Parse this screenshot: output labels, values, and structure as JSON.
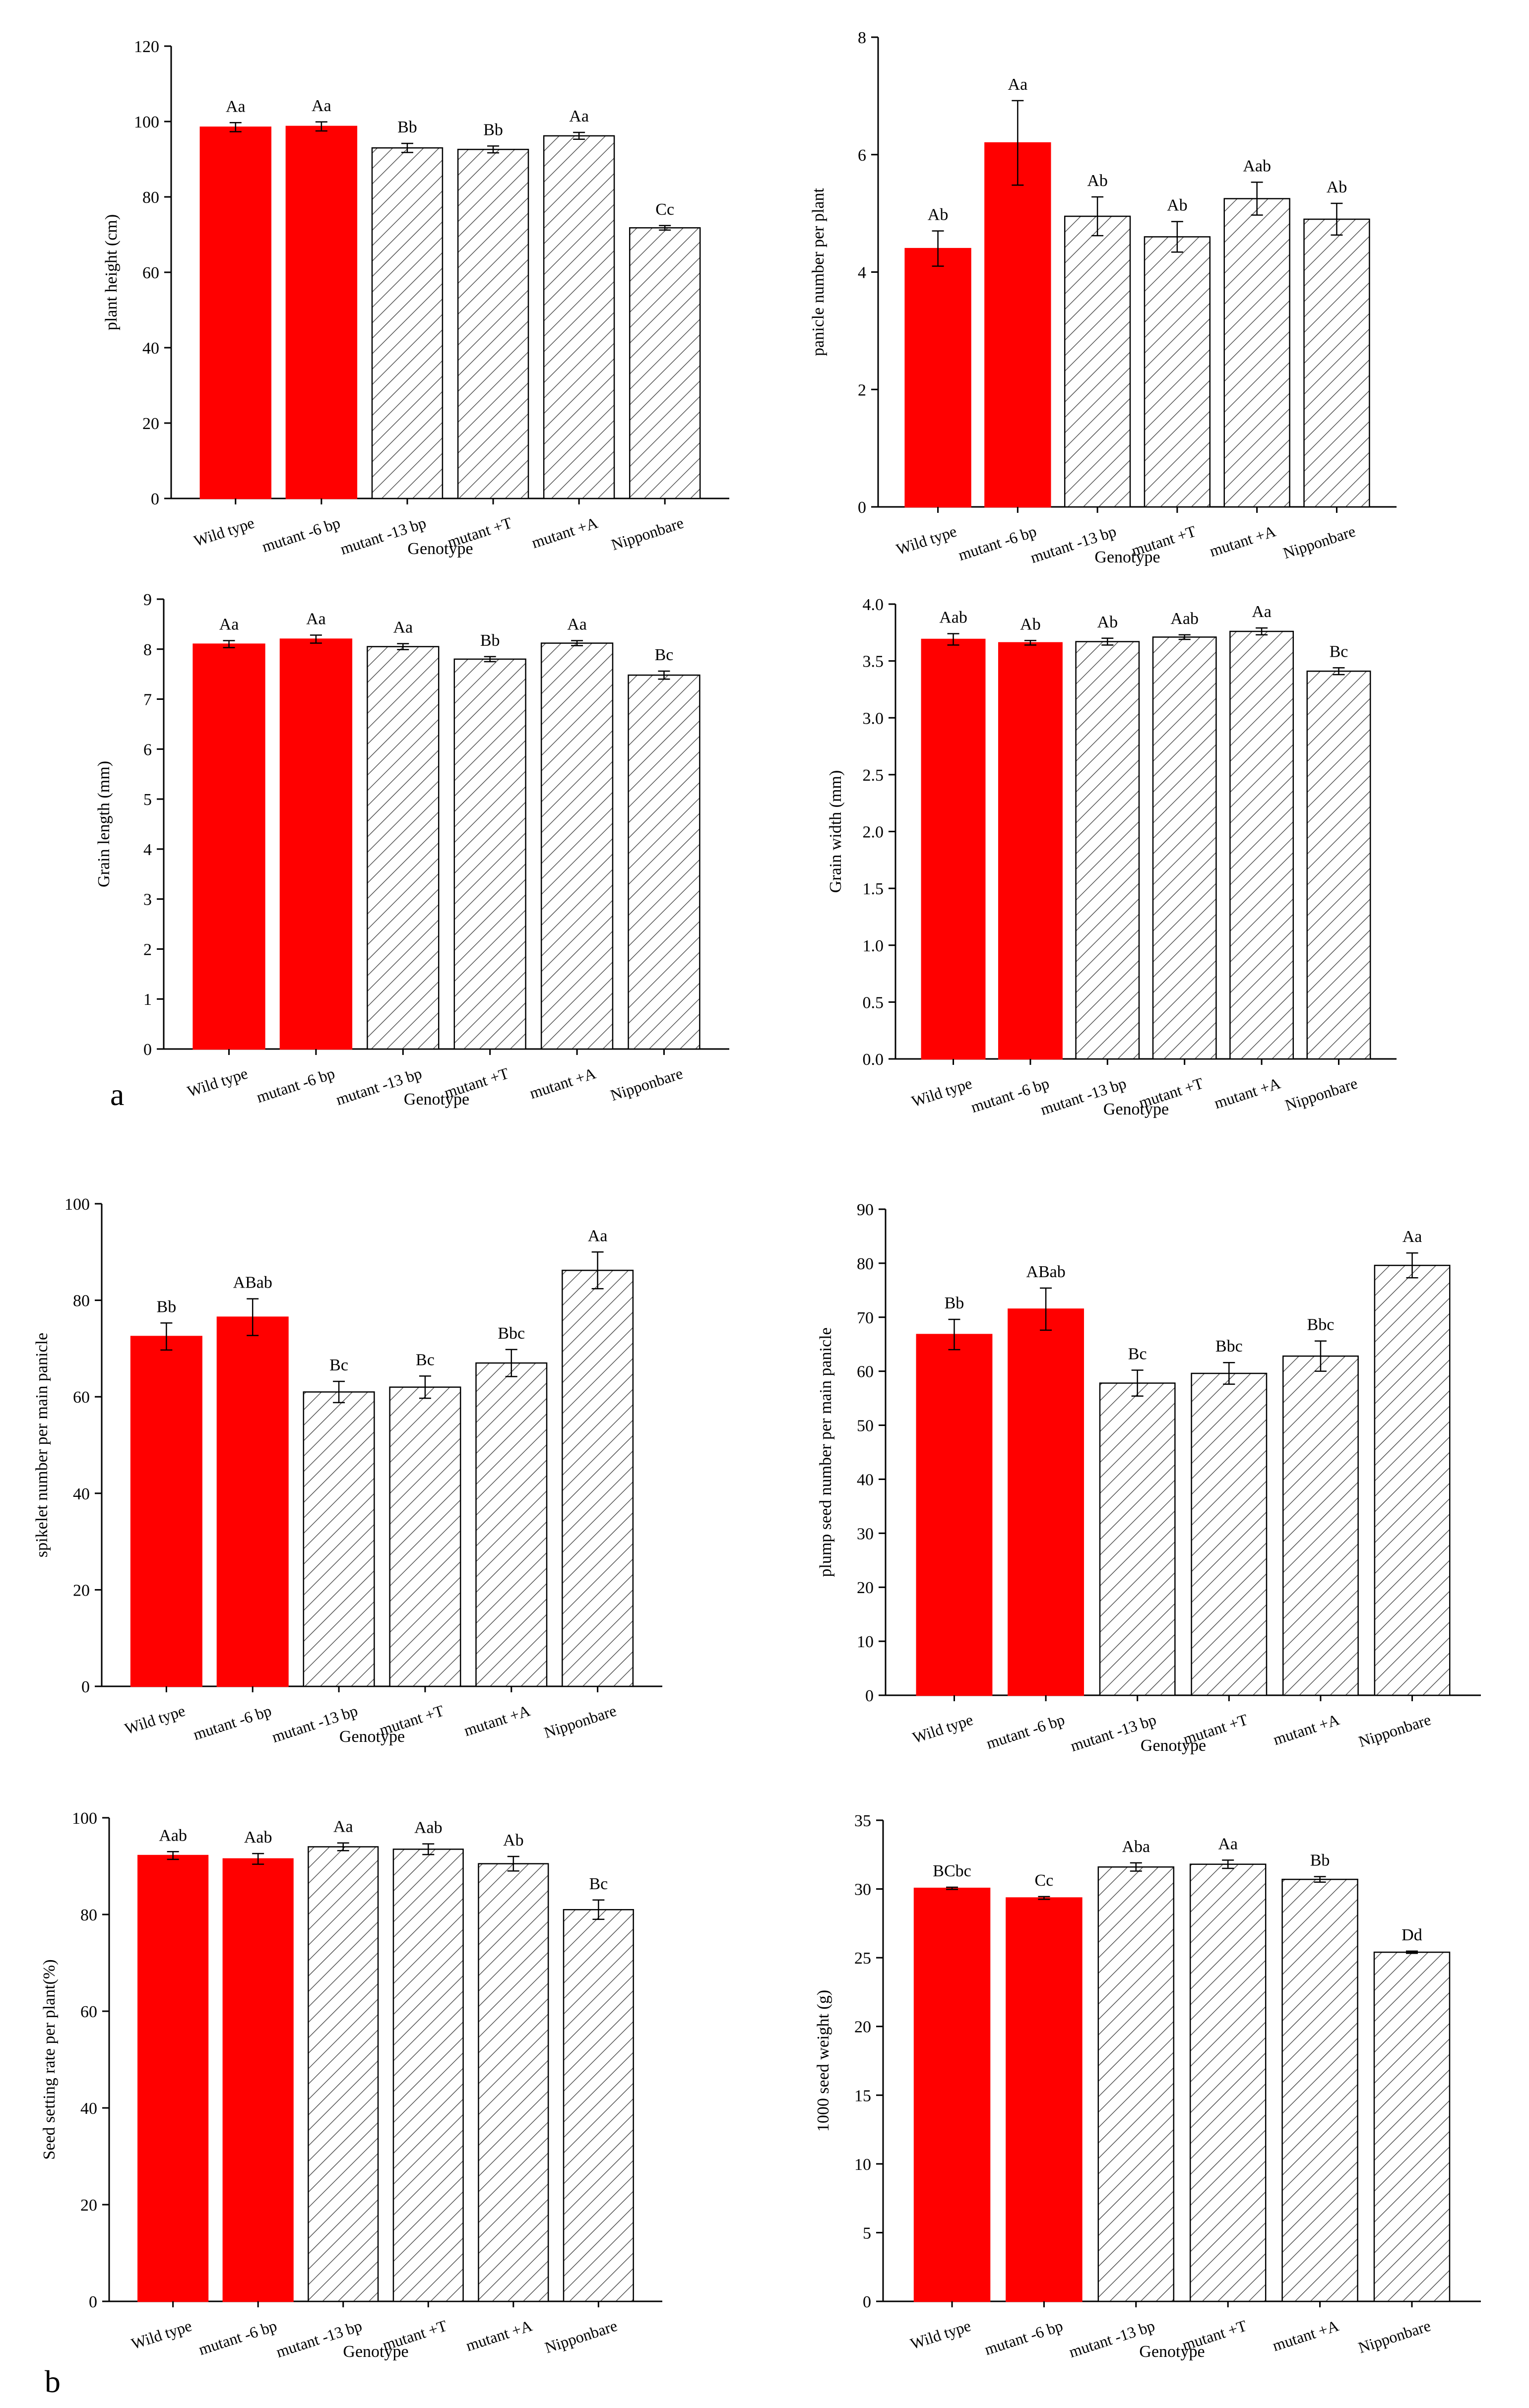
{
  "figure": {
    "panel_labels": {
      "a": "a",
      "b": "b"
    },
    "colors": {
      "highlight_fill": "#ff0000",
      "hatch_fill": "#ffffff",
      "hatch_line": "#555555",
      "axis": "#000000"
    },
    "bar_styles": [
      "solid",
      "solid",
      "hatched",
      "hatched",
      "hatched",
      "hatched"
    ]
  },
  "chart_data": [
    {
      "type": "bar",
      "title": "",
      "xlabel": "Genotype",
      "ylabel": "plant height (cm)",
      "categories": [
        "Wild type",
        "mutant -6 bp",
        "mutant -13 bp",
        "mutant +T",
        "mutant +A",
        "Nipponbare"
      ],
      "values": [
        98.5,
        98.7,
        93.0,
        92.6,
        96.2,
        71.8
      ],
      "errors": [
        1.2,
        1.2,
        1.2,
        0.9,
        0.9,
        0.6
      ],
      "labels": [
        "Aa",
        "Aa",
        "Bb",
        "Bb",
        "Aa",
        "Cc"
      ],
      "ylim": [
        0,
        120
      ],
      "yticks": [
        "0",
        "20",
        "40",
        "60",
        "80",
        "100",
        "120"
      ]
    },
    {
      "type": "bar",
      "title": "",
      "xlabel": "Genotype",
      "ylabel": "panicle number per plant",
      "categories": [
        "Wild type",
        "mutant -6 bp",
        "mutant -13 bp",
        "mutant +T",
        "mutant +A",
        "Nipponbare"
      ],
      "values": [
        4.4,
        6.2,
        4.95,
        4.6,
        5.25,
        4.9
      ],
      "errors": [
        0.3,
        0.72,
        0.33,
        0.26,
        0.28,
        0.27
      ],
      "labels": [
        "Ab",
        "Aa",
        "Ab",
        "Ab",
        "Aab",
        "Ab"
      ],
      "ylim": [
        0,
        8
      ],
      "yticks": [
        "0",
        "2",
        "4",
        "6",
        "8"
      ]
    },
    {
      "type": "bar",
      "title": "",
      "xlabel": "Genotype",
      "ylabel": "Grain length (mm)",
      "categories": [
        "Wild type",
        "mutant -6 bp",
        "mutant -13 bp",
        "mutant +T",
        "mutant +A",
        "Nipponbare"
      ],
      "values": [
        8.1,
        8.2,
        8.05,
        7.8,
        8.12,
        7.48
      ],
      "errors": [
        0.07,
        0.08,
        0.06,
        0.05,
        0.05,
        0.08
      ],
      "labels": [
        "Aa",
        "Aa",
        "Aa",
        "Bb",
        "Aa",
        "Bc"
      ],
      "ylim": [
        0,
        9
      ],
      "yticks": [
        "0",
        "1",
        "2",
        "3",
        "4",
        "5",
        "6",
        "7",
        "8",
        "9"
      ]
    },
    {
      "type": "bar",
      "title": "",
      "xlabel": "Genotype",
      "ylabel": "Grain width (mm)",
      "categories": [
        "Wild type",
        "mutant -6 bp",
        "mutant -13 bp",
        "mutant +T",
        "mutant +A",
        "Nipponbare"
      ],
      "values": [
        3.69,
        3.66,
        3.67,
        3.71,
        3.76,
        3.41
      ],
      "errors": [
        0.05,
        0.02,
        0.03,
        0.02,
        0.03,
        0.03
      ],
      "labels": [
        "Aab",
        "Ab",
        "Ab",
        "Aab",
        "Aa",
        "Bc"
      ],
      "ylim": [
        0,
        4.0
      ],
      "yticks": [
        "0.0",
        "0.5",
        "1.0",
        "1.5",
        "2.0",
        "2.5",
        "3.0",
        "3.5",
        "4.0"
      ]
    },
    {
      "type": "bar",
      "title": "",
      "xlabel": "Genotype",
      "ylabel": "spikelet number per main panicle",
      "categories": [
        "Wild type",
        "mutant -6 bp",
        "mutant -13 bp",
        "mutant +T",
        "mutant +A",
        "Nipponbare"
      ],
      "values": [
        72.5,
        76.5,
        61.0,
        62.0,
        67.0,
        86.2
      ],
      "errors": [
        2.8,
        3.8,
        2.2,
        2.3,
        2.8,
        3.8
      ],
      "labels": [
        "Bb",
        "ABab",
        "Bc",
        "Bc",
        "Bbc",
        "Aa"
      ],
      "ylim": [
        0,
        100
      ],
      "yticks": [
        "0",
        "20",
        "40",
        "60",
        "80",
        "100"
      ]
    },
    {
      "type": "bar",
      "title": "",
      "xlabel": "Genotype",
      "ylabel": "plump seed number per main panicle",
      "categories": [
        "Wild type",
        "mutant -6 bp",
        "mutant -13 bp",
        "mutant +T",
        "mutant +A",
        "Nipponbare"
      ],
      "values": [
        66.8,
        71.5,
        57.8,
        59.6,
        62.8,
        79.6
      ],
      "errors": [
        2.8,
        3.9,
        2.4,
        2.0,
        2.8,
        2.3
      ],
      "labels": [
        "Bb",
        "ABab",
        "Bc",
        "Bbc",
        "Bbc",
        "Aa"
      ],
      "ylim": [
        0,
        90
      ],
      "yticks": [
        "0",
        "10",
        "20",
        "30",
        "40",
        "50",
        "60",
        "70",
        "80",
        "90"
      ]
    },
    {
      "type": "bar",
      "title": "",
      "xlabel": "Genotype",
      "ylabel": "Seed setting rate per plant(%)",
      "categories": [
        "Wild type",
        "mutant -6 bp",
        "mutant -13 bp",
        "mutant +T",
        "mutant +A",
        "Nipponbare"
      ],
      "values": [
        92.2,
        91.5,
        94.0,
        93.5,
        90.5,
        81.0
      ],
      "errors": [
        0.8,
        1.1,
        0.8,
        1.1,
        1.5,
        2.0
      ],
      "labels": [
        "Aab",
        "Aab",
        "Aa",
        "Aab",
        "Ab",
        "Bc"
      ],
      "ylim": [
        0,
        100
      ],
      "yticks": [
        "0",
        "20",
        "40",
        "60",
        "80",
        "100"
      ]
    },
    {
      "type": "bar",
      "title": "",
      "xlabel": "Genotype",
      "ylabel": "1000 seed weight (g)",
      "categories": [
        "Wild type",
        "mutant -6 bp",
        "mutant -13 bp",
        "mutant +T",
        "mutant +A",
        "Nipponbare"
      ],
      "values": [
        30.05,
        29.35,
        31.6,
        31.8,
        30.7,
        25.4
      ],
      "errors": [
        0.08,
        0.1,
        0.3,
        0.3,
        0.2,
        0.08
      ],
      "labels": [
        "BCbc",
        "Cc",
        "Aba",
        "Aa",
        "Bb",
        "Dd"
      ],
      "ylim": [
        0,
        35
      ],
      "yticks": [
        "0",
        "5",
        "10",
        "15",
        "20",
        "25",
        "30",
        "35"
      ]
    }
  ]
}
